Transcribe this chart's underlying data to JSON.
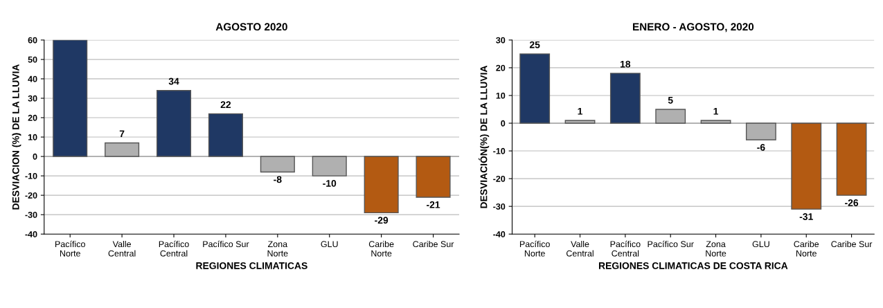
{
  "chart_data": [
    {
      "type": "bar",
      "title": "AGOSTO 2020",
      "xlabel": "REGIONES CLIMATICAS",
      "ylabel": "DESVIACION (%) DE LA LLUVIA",
      "categories": [
        "Pacífico\nNorte",
        "Valle\nCentral",
        "Pacífico\nCentral",
        "Pacífico Sur",
        "Zona\nNorte",
        "GLU",
        "Caribe\nNorte",
        "Caribe Sur"
      ],
      "values": [
        60,
        7,
        34,
        22,
        -8,
        -10,
        -29,
        -21
      ],
      "colors": [
        "#1f3864",
        "#b0b0b0",
        "#1f3864",
        "#1f3864",
        "#b0b0b0",
        "#b0b0b0",
        "#b35a12",
        "#b35a12"
      ],
      "value_labels": [
        null,
        "7",
        "34",
        "22",
        "-8",
        "-10",
        "-29",
        "-21"
      ],
      "ylim": [
        -40,
        60
      ],
      "yticks": [
        -40,
        -30,
        -20,
        -10,
        0,
        10,
        20,
        30,
        40,
        50,
        60
      ],
      "grid": "y"
    },
    {
      "type": "bar",
      "title": "ENERO - AGOSTO, 2020",
      "xlabel": "REGIONES CLIMATICAS DE COSTA RICA",
      "ylabel": "DESVIACIÓN(%) DE LA LLUVIA",
      "categories": [
        "Pacífico\nNorte",
        "Valle\nCentral",
        "Pacífico\nCentral",
        "Pacífico Sur",
        "Zona\nNorte",
        "GLU",
        "Caribe\nNorte",
        "Caribe Sur"
      ],
      "values": [
        25,
        1,
        18,
        5,
        1,
        -6,
        -31,
        -26
      ],
      "colors": [
        "#1f3864",
        "#b0b0b0",
        "#1f3864",
        "#b0b0b0",
        "#b0b0b0",
        "#b0b0b0",
        "#b35a12",
        "#b35a12"
      ],
      "data_labels": true,
      "ylim": [
        -40,
        30
      ],
      "yticks": [
        -40,
        -30,
        -20,
        -10,
        0,
        10,
        20,
        30
      ],
      "grid": "y"
    }
  ]
}
